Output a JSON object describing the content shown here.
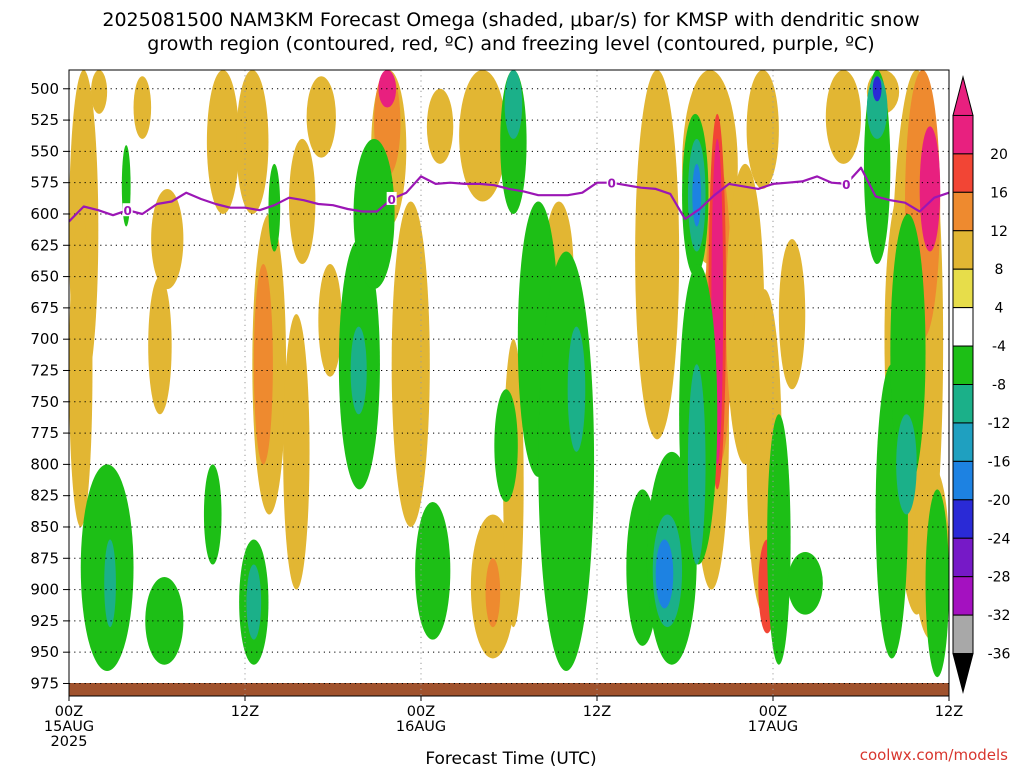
{
  "title_line1": "2025081500 NAM3KM Forecast Omega (shaded, μbar/s) for KMSP with dendritic snow",
  "title_line2": "growth region (contoured, red, ºC) and freezing level (contoured, purple, ºC)",
  "credit": "coolwx.com/models",
  "chart_data": {
    "type": "heatmap",
    "xlabel": "Forecast Time (UTC)",
    "ylabel": "",
    "xlim": [
      0,
      60
    ],
    "ylim": [
      985,
      485
    ],
    "x_units": "hours from 2025-08-15 00Z",
    "x_ticks": [
      {
        "x": 0,
        "lines": [
          "00Z",
          "15AUG",
          "2025"
        ]
      },
      {
        "x": 12,
        "lines": [
          "12Z"
        ]
      },
      {
        "x": 24,
        "lines": [
          "00Z",
          "16AUG"
        ]
      },
      {
        "x": 36,
        "lines": [
          "12Z"
        ]
      },
      {
        "x": 48,
        "lines": [
          "00Z",
          "17AUG"
        ]
      },
      {
        "x": 60,
        "lines": [
          "12Z"
        ]
      }
    ],
    "y_ticks": [
      500,
      525,
      550,
      575,
      600,
      625,
      650,
      675,
      700,
      725,
      750,
      775,
      800,
      825,
      850,
      875,
      900,
      925,
      950,
      975
    ],
    "grid": true,
    "colorbar": {
      "units": "μbar/s",
      "levels": [
        {
          "label": "20",
          "color": "#e8207f"
        },
        {
          "label": "16",
          "color": "#f24535"
        },
        {
          "label": "12",
          "color": "#ee8a2f"
        },
        {
          "label": "8",
          "color": "#e2b633"
        },
        {
          "label": "4",
          "color": "#e7dd4a"
        },
        {
          "label": "-4",
          "color": "#ffffff"
        },
        {
          "label": "-8",
          "color": "#1dbf16"
        },
        {
          "label": "-12",
          "color": "#1bb089"
        },
        {
          "label": "-16",
          "color": "#1fa0c0"
        },
        {
          "label": "-20",
          "color": "#1d82e2"
        },
        {
          "label": "-24",
          "color": "#2a2ad6"
        },
        {
          "label": "-28",
          "color": "#7619c7"
        },
        {
          "label": "-32",
          "color": "#a411c0"
        },
        {
          "label": "-36",
          "color": "#a8a8a8"
        }
      ],
      "bottom_color": "#000000"
    },
    "freezing_level": {
      "label": "0",
      "color": "#9b16b5",
      "x": [
        0,
        1,
        2,
        3,
        4,
        5,
        6,
        7,
        8,
        9,
        10,
        11,
        12,
        13,
        14,
        15,
        16,
        17,
        18,
        19,
        20,
        21,
        22,
        23,
        24,
        25,
        26,
        27,
        28,
        29,
        30,
        31,
        32,
        33,
        34,
        35,
        36,
        37,
        38,
        39,
        40,
        41,
        42,
        43,
        44,
        45,
        46,
        47,
        48,
        49,
        50,
        51,
        52,
        53,
        54,
        55,
        56,
        57,
        58,
        59,
        60
      ],
      "y": [
        606,
        594,
        597,
        601,
        597,
        600,
        592,
        590,
        583,
        588,
        592,
        595,
        595,
        597,
        593,
        587,
        589,
        592,
        593,
        596,
        598,
        598,
        588,
        583,
        570,
        576,
        575,
        576,
        576,
        577,
        580,
        582,
        585,
        585,
        585,
        583,
        575,
        575,
        577,
        579,
        580,
        584,
        604,
        596,
        585,
        576,
        578,
        580,
        576,
        575,
        574,
        570,
        575,
        576,
        563,
        586,
        589,
        591,
        598,
        587,
        583
      ],
      "labels_at_x": [
        4,
        22,
        37,
        53
      ]
    },
    "omega_regions": [
      {
        "value": 6,
        "x": [
          0,
          2
        ],
        "p": [
          485,
          740
        ]
      },
      {
        "value": 6,
        "x": [
          0,
          1.6
        ],
        "p": [
          600,
          850
        ]
      },
      {
        "value": 6,
        "x": [
          1.5,
          2.6
        ],
        "p": [
          485,
          520
        ]
      },
      {
        "value": 6,
        "x": [
          4.4,
          5.6
        ],
        "p": [
          490,
          540
        ]
      },
      {
        "value": 6,
        "x": [
          5.6,
          7.8
        ],
        "p": [
          580,
          660
        ]
      },
      {
        "value": 6,
        "x": [
          5.4,
          7
        ],
        "p": [
          650,
          760
        ]
      },
      {
        "value": 6,
        "x": [
          9.4,
          11.6
        ],
        "p": [
          485,
          600
        ]
      },
      {
        "value": 6,
        "x": [
          11.4,
          13.6
        ],
        "p": [
          485,
          600
        ]
      },
      {
        "value": 6,
        "x": [
          12.5,
          14.8
        ],
        "p": [
          600,
          840
        ]
      },
      {
        "value": 10,
        "x": [
          12.6,
          13.9
        ],
        "p": [
          640,
          800
        ]
      },
      {
        "value": 6,
        "x": [
          14.6,
          16.4
        ],
        "p": [
          680,
          900
        ]
      },
      {
        "value": 6,
        "x": [
          15,
          16.8
        ],
        "p": [
          540,
          640
        ]
      },
      {
        "value": 6,
        "x": [
          16.2,
          18.2
        ],
        "p": [
          490,
          555
        ]
      },
      {
        "value": 6,
        "x": [
          17,
          18.6
        ],
        "p": [
          640,
          730
        ]
      },
      {
        "value": 6,
        "x": [
          20.6,
          23
        ],
        "p": [
          485,
          610
        ]
      },
      {
        "value": 10,
        "x": [
          20.8,
          22.6
        ],
        "p": [
          485,
          570
        ]
      },
      {
        "value": 20,
        "x": [
          21.1,
          22.3
        ],
        "p": [
          485,
          515
        ]
      },
      {
        "value": 6,
        "x": [
          22,
          24.6
        ],
        "p": [
          590,
          850
        ]
      },
      {
        "value": 6,
        "x": [
          24.4,
          26.2
        ],
        "p": [
          500,
          560
        ]
      },
      {
        "value": 6,
        "x": [
          26.6,
          29.8
        ],
        "p": [
          485,
          590
        ]
      },
      {
        "value": 6,
        "x": [
          27.4,
          30.4
        ],
        "p": [
          840,
          955
        ]
      },
      {
        "value": 12,
        "x": [
          28.4,
          29.4
        ],
        "p": [
          875,
          930
        ]
      },
      {
        "value": 6,
        "x": [
          29.6,
          31
        ],
        "p": [
          700,
          930
        ]
      },
      {
        "value": 6,
        "x": [
          32.4,
          34.4
        ],
        "p": [
          590,
          700
        ]
      },
      {
        "value": 6,
        "x": [
          38.6,
          41.6
        ],
        "p": [
          485,
          780
        ]
      },
      {
        "value": 6,
        "x": [
          41.8,
          45.6
        ],
        "p": [
          485,
          640
        ]
      },
      {
        "value": 6,
        "x": [
          42.6,
          45
        ],
        "p": [
          640,
          900
        ]
      },
      {
        "value": 10,
        "x": [
          43.4,
          45.2
        ],
        "p": [
          560,
          800
        ]
      },
      {
        "value": 16,
        "x": [
          43.6,
          44.8
        ],
        "p": [
          520,
          820
        ]
      },
      {
        "value": 20,
        "x": [
          43.8,
          44.6
        ],
        "p": [
          540,
          800
        ]
      },
      {
        "value": 6,
        "x": [
          44.8,
          47.4
        ],
        "p": [
          560,
          800
        ]
      },
      {
        "value": 6,
        "x": [
          46.2,
          48.6
        ],
        "p": [
          660,
          920
        ]
      },
      {
        "value": 14,
        "x": [
          47,
          48.2
        ],
        "p": [
          860,
          935
        ]
      },
      {
        "value": 6,
        "x": [
          46.2,
          48.4
        ],
        "p": [
          485,
          580
        ]
      },
      {
        "value": 6,
        "x": [
          48.4,
          50.2
        ],
        "p": [
          620,
          740
        ]
      },
      {
        "value": 6,
        "x": [
          51.6,
          54
        ],
        "p": [
          485,
          560
        ]
      },
      {
        "value": 6,
        "x": [
          54.4,
          56.6
        ],
        "p": [
          485,
          520
        ]
      },
      {
        "value": 6,
        "x": [
          55.6,
          58
        ],
        "p": [
          580,
          820
        ]
      },
      {
        "value": 6,
        "x": [
          56,
          59.6
        ],
        "p": [
          485,
          920
        ]
      },
      {
        "value": 10,
        "x": [
          57,
          59.4
        ],
        "p": [
          485,
          700
        ]
      },
      {
        "value": 18,
        "x": [
          58,
          59.4
        ],
        "p": [
          530,
          630
        ]
      },
      {
        "value": 6,
        "x": [
          57.6,
          60
        ],
        "p": [
          800,
          940
        ]
      }
    ],
    "omega_negative_regions": [
      {
        "value": -6,
        "x": [
          0.8,
          4.4
        ],
        "p": [
          800,
          965
        ]
      },
      {
        "value": -10,
        "x": [
          2.4,
          3.2
        ],
        "p": [
          860,
          930
        ]
      },
      {
        "value": -6,
        "x": [
          3.6,
          4.2
        ],
        "p": [
          545,
          610
        ]
      },
      {
        "value": -6,
        "x": [
          5.2,
          7.8
        ],
        "p": [
          890,
          960
        ]
      },
      {
        "value": -6,
        "x": [
          9.2,
          10.4
        ],
        "p": [
          800,
          880
        ]
      },
      {
        "value": -6,
        "x": [
          11.6,
          13.6
        ],
        "p": [
          860,
          960
        ]
      },
      {
        "value": -10,
        "x": [
          12.1,
          13.1
        ],
        "p": [
          880,
          940
        ]
      },
      {
        "value": -6,
        "x": [
          13.6,
          14.4
        ],
        "p": [
          560,
          630
        ]
      },
      {
        "value": -6,
        "x": [
          18.4,
          21.2
        ],
        "p": [
          620,
          820
        ]
      },
      {
        "value": -10,
        "x": [
          19.2,
          20.3
        ],
        "p": [
          690,
          760
        ]
      },
      {
        "value": -6,
        "x": [
          19.4,
          22.2
        ],
        "p": [
          540,
          660
        ]
      },
      {
        "value": -6,
        "x": [
          23.6,
          26
        ],
        "p": [
          830,
          940
        ]
      },
      {
        "value": -6,
        "x": [
          29.4,
          31.2
        ],
        "p": [
          485,
          600
        ]
      },
      {
        "value": -12,
        "x": [
          29.7,
          30.9
        ],
        "p": [
          485,
          540
        ]
      },
      {
        "value": -6,
        "x": [
          29,
          30.6
        ],
        "p": [
          740,
          830
        ]
      },
      {
        "value": -6,
        "x": [
          30.6,
          33.4
        ],
        "p": [
          590,
          810
        ]
      },
      {
        "value": -6,
        "x": [
          32,
          35.8
        ],
        "p": [
          630,
          965
        ]
      },
      {
        "value": -10,
        "x": [
          34,
          35.2
        ],
        "p": [
          690,
          790
        ]
      },
      {
        "value": -6,
        "x": [
          38,
          40.2
        ],
        "p": [
          820,
          945
        ]
      },
      {
        "value": -6,
        "x": [
          39.4,
          42.8
        ],
        "p": [
          790,
          960
        ]
      },
      {
        "value": -12,
        "x": [
          39.8,
          41.8
        ],
        "p": [
          840,
          930
        ]
      },
      {
        "value": -18,
        "x": [
          40,
          41.2
        ],
        "p": [
          860,
          915
        ]
      },
      {
        "value": -6,
        "x": [
          41.8,
          43.6
        ],
        "p": [
          520,
          650
        ]
      },
      {
        "value": -12,
        "x": [
          42.2,
          43.4
        ],
        "p": [
          540,
          630
        ]
      },
      {
        "value": -18,
        "x": [
          42.5,
          43.1
        ],
        "p": [
          560,
          610
        ]
      },
      {
        "value": -6,
        "x": [
          41.6,
          44.2
        ],
        "p": [
          640,
          880
        ]
      },
      {
        "value": -10,
        "x": [
          42.2,
          43.4
        ],
        "p": [
          720,
          880
        ]
      },
      {
        "value": -6,
        "x": [
          47.6,
          49.2
        ],
        "p": [
          760,
          960
        ]
      },
      {
        "value": -6,
        "x": [
          49,
          51.4
        ],
        "p": [
          870,
          920
        ]
      },
      {
        "value": -6,
        "x": [
          55,
          57.2
        ],
        "p": [
          720,
          955
        ]
      },
      {
        "value": -6,
        "x": [
          54.2,
          56
        ],
        "p": [
          485,
          640
        ]
      },
      {
        "value": -12,
        "x": [
          54.4,
          55.8
        ],
        "p": [
          490,
          540
        ]
      },
      {
        "value": -24,
        "x": [
          54.8,
          55.4
        ],
        "p": [
          490,
          510
        ]
      },
      {
        "value": -6,
        "x": [
          56,
          58.4
        ],
        "p": [
          600,
          820
        ]
      },
      {
        "value": -12,
        "x": [
          56.4,
          57.8
        ],
        "p": [
          760,
          840
        ]
      },
      {
        "value": -6,
        "x": [
          58.4,
          60
        ],
        "p": [
          820,
          970
        ]
      }
    ]
  }
}
